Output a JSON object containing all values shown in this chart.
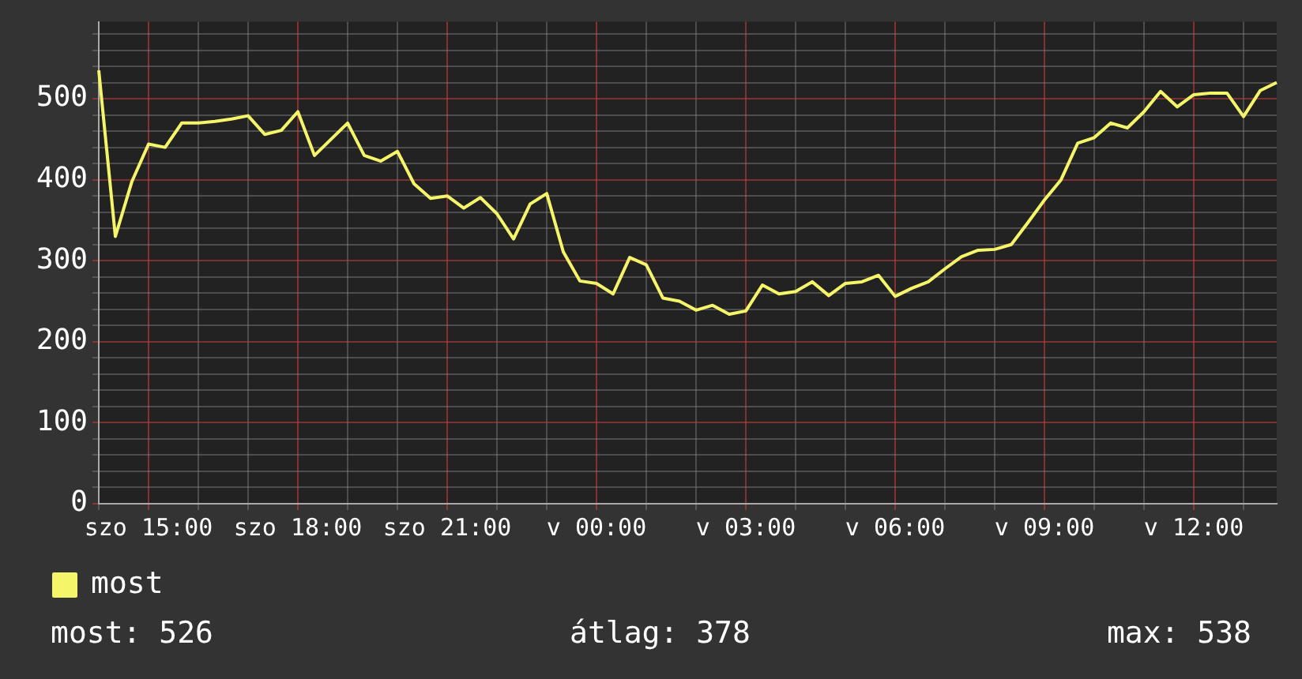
{
  "chart_data": {
    "type": "line",
    "ylim": [
      0,
      595
    ],
    "categories": [
      null,
      null,
      null,
      "szo 15:00",
      null,
      null,
      null,
      null,
      null,
      null,
      null,
      null,
      "szo 18:00",
      null,
      null,
      null,
      null,
      null,
      null,
      null,
      null,
      "szo 21:00",
      null,
      null,
      null,
      null,
      null,
      null,
      null,
      null,
      "v 00:00",
      null,
      null,
      null,
      null,
      null,
      null,
      null,
      null,
      "v 03:00",
      null,
      null,
      null,
      null,
      null,
      null,
      null,
      null,
      "v 06:00",
      null,
      null,
      null,
      null,
      null,
      null,
      null,
      null,
      "v 09:00",
      null,
      null,
      null,
      null,
      null,
      null,
      null,
      null,
      "v 12:00",
      null,
      null,
      null,
      null,
      null
    ],
    "yticks": [
      0,
      {
        "value": 20,
        "label": null
      },
      {
        "value": 40,
        "label": null
      },
      {
        "value": 60,
        "label": null
      },
      {
        "value": 80,
        "label": null
      },
      100,
      {
        "value": 120,
        "label": null
      },
      {
        "value": 140,
        "label": null
      },
      {
        "value": 160,
        "label": null
      },
      {
        "value": 180,
        "label": null
      },
      200,
      {
        "value": 220,
        "label": null
      },
      {
        "value": 240,
        "label": null
      },
      {
        "value": 260,
        "label": null
      },
      {
        "value": 280,
        "label": null
      },
      300,
      {
        "value": 320,
        "label": null
      },
      {
        "value": 340,
        "label": null
      },
      {
        "value": 360,
        "label": null
      },
      {
        "value": 380,
        "label": null
      },
      400,
      {
        "value": 420,
        "label": null
      },
      {
        "value": 440,
        "label": null
      },
      {
        "value": 460,
        "label": null
      },
      {
        "value": 480,
        "label": null
      },
      500,
      {
        "value": 520,
        "label": null
      },
      {
        "value": 540,
        "label": null
      },
      {
        "value": 560,
        "label": null
      },
      {
        "value": 580,
        "label": null
      }
    ],
    "grid": true,
    "legend": "bottom left",
    "marker": "none",
    "line_style": "solid",
    "annotations": [
      "most: 526",
      "átlag: 378",
      "max: 538"
    ],
    "series": [
      {
        "name": "most",
        "color": "#f5f56a",
        "values": [
          535,
          330,
          398,
          444,
          440,
          470,
          470,
          472,
          475,
          479,
          456,
          461,
          484,
          430,
          450,
          470,
          430,
          423,
          435,
          395,
          377,
          380,
          365,
          378,
          358,
          327,
          370,
          383,
          311,
          275,
          272,
          259,
          304,
          295,
          254,
          250,
          239,
          245,
          234,
          238,
          270,
          259,
          262,
          274,
          257,
          272,
          274,
          282,
          256,
          266,
          274,
          290,
          305,
          313,
          314,
          320,
          347,
          375,
          400,
          445,
          452,
          470,
          464,
          484,
          509,
          490,
          505,
          507,
          507,
          478,
          510,
          520
        ]
      }
    ]
  }
}
